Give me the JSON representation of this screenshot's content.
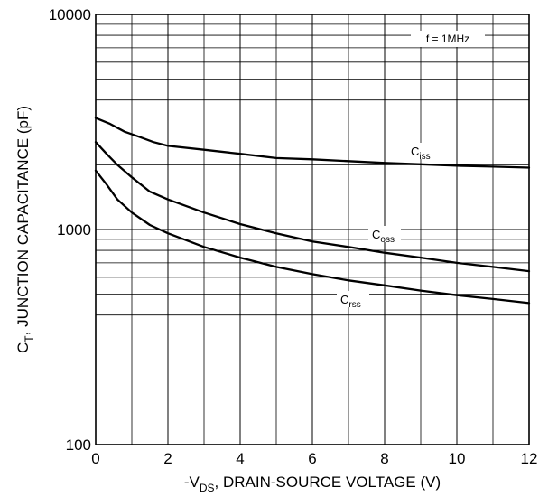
{
  "chart_data": {
    "type": "line",
    "title": "",
    "xlabel": {
      "prefix": "-V",
      "sub": "DS",
      "rest": ", DRAIN-SOURCE VOLTAGE (V)"
    },
    "ylabel": {
      "prefix": "C",
      "sub": "T",
      "rest": ", JUNCTION CAPACITANCE (pF)"
    },
    "xlim": [
      0,
      12
    ],
    "ylim": [
      100,
      10000
    ],
    "yscale": "log",
    "grid": true,
    "x_ticks": [
      "0",
      "2",
      "4",
      "6",
      "8",
      "10",
      "12"
    ],
    "y_ticks": [
      "100",
      "1000",
      "10000"
    ],
    "annotations": [
      {
        "text": "f = 1MHz"
      }
    ],
    "series": [
      {
        "name": "Ciss",
        "label_main": "C",
        "label_sub": "iss",
        "x": [
          0,
          0.4,
          0.8,
          1.2,
          1.6,
          2,
          3,
          4,
          5,
          6,
          7,
          8,
          9,
          10,
          11,
          12
        ],
        "values": [
          3300,
          3100,
          2850,
          2700,
          2550,
          2450,
          2350,
          2250,
          2150,
          2120,
          2080,
          2040,
          2010,
          1980,
          1960,
          1940
        ]
      },
      {
        "name": "Coss",
        "label_main": "C",
        "label_sub": "oss",
        "x": [
          0,
          0.3,
          0.6,
          1,
          1.5,
          2,
          3,
          4,
          5,
          6,
          7,
          8,
          9,
          10,
          11,
          12
        ],
        "values": [
          2550,
          2250,
          2000,
          1750,
          1500,
          1380,
          1200,
          1060,
          960,
          880,
          830,
          780,
          740,
          700,
          670,
          640
        ]
      },
      {
        "name": "Crss",
        "label_main": "C",
        "label_sub": "rss",
        "x": [
          0,
          0.3,
          0.6,
          1,
          1.5,
          2,
          3,
          4,
          5,
          6,
          7,
          8,
          9,
          10,
          11,
          12
        ],
        "values": [
          1880,
          1620,
          1380,
          1200,
          1050,
          960,
          830,
          740,
          670,
          620,
          580,
          550,
          520,
          495,
          475,
          455
        ]
      }
    ]
  }
}
